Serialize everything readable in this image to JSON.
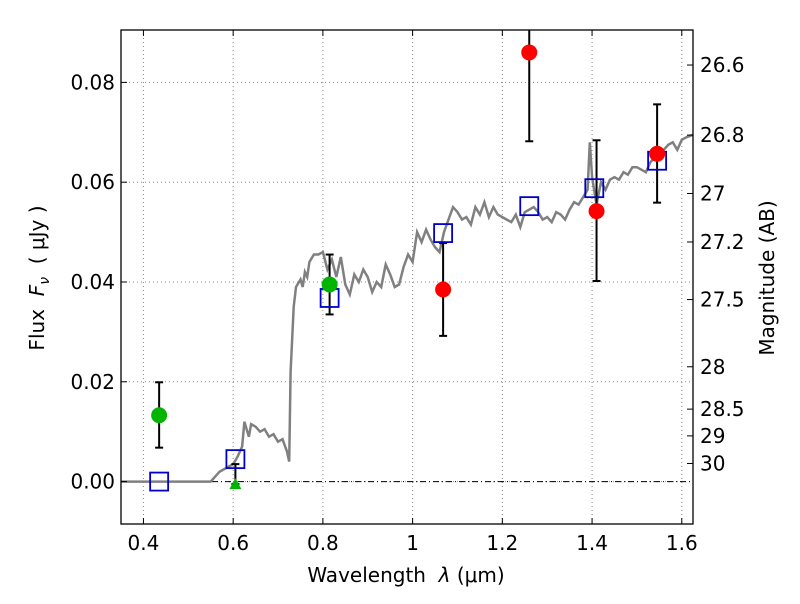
{
  "chart_data": {
    "type": "scatter",
    "title": "",
    "xlabel_prefix": "Wavelength  ",
    "xlabel_symbol": "λ",
    "xlabel_unit": " (μm)",
    "ylabel_prefix": "Flux  ",
    "ylabel_symbol": "F",
    "ylabel_subscript": "ν",
    "ylabel_unit": "  ( μJy )",
    "y2label": "Magnitude (AB)",
    "xlim": [
      0.35,
      1.625
    ],
    "ylim": [
      -0.0085,
      0.0905
    ],
    "grid": true,
    "x_ticks": [
      {
        "value": 0.4,
        "label": "0.4"
      },
      {
        "value": 0.6,
        "label": "0.6"
      },
      {
        "value": 0.8,
        "label": "0.8"
      },
      {
        "value": 1.0,
        "label": "1"
      },
      {
        "value": 1.2,
        "label": "1.2"
      },
      {
        "value": 1.4,
        "label": "1.4"
      },
      {
        "value": 1.6,
        "label": "1.6"
      }
    ],
    "y_ticks": [
      {
        "value": 0.0,
        "label": "0.00"
      },
      {
        "value": 0.02,
        "label": "0.02"
      },
      {
        "value": 0.04,
        "label": "0.04"
      },
      {
        "value": 0.06,
        "label": "0.06"
      },
      {
        "value": 0.08,
        "label": "0.08"
      }
    ],
    "magnitude_ticks": [
      {
        "label": "26.6",
        "flux": 0.08348
      },
      {
        "label": "26.8",
        "flux": 0.06944
      },
      {
        "label": "27",
        "flux": 0.05774
      },
      {
        "label": "27.2",
        "flux": 0.04802
      },
      {
        "label": "27.5",
        "flux": 0.03648
      },
      {
        "label": "28",
        "flux": 0.02301
      },
      {
        "label": "28.5",
        "flux": 0.01452
      },
      {
        "label": "29",
        "flux": 0.00916
      },
      {
        "label": "30",
        "flux": 0.00363
      }
    ],
    "colors": {
      "model": "#808080",
      "green": "#00b400",
      "red": "#ff0000",
      "square": "#0000cc",
      "error": "#000000",
      "grid": "#888888"
    },
    "model_spectrum": [
      [
        0.35,
        0.0
      ],
      [
        0.55,
        0.0
      ],
      [
        0.56,
        0.001
      ],
      [
        0.57,
        0.002
      ],
      [
        0.58,
        0.0025
      ],
      [
        0.59,
        0.003
      ],
      [
        0.6,
        0.0035
      ],
      [
        0.61,
        0.005
      ],
      [
        0.62,
        0.007
      ],
      [
        0.625,
        0.012
      ],
      [
        0.63,
        0.0105
      ],
      [
        0.635,
        0.009
      ],
      [
        0.64,
        0.0115
      ],
      [
        0.65,
        0.011
      ],
      [
        0.66,
        0.01
      ],
      [
        0.67,
        0.0105
      ],
      [
        0.68,
        0.009
      ],
      [
        0.69,
        0.0095
      ],
      [
        0.7,
        0.008
      ],
      [
        0.71,
        0.0085
      ],
      [
        0.72,
        0.006
      ],
      [
        0.725,
        0.004
      ],
      [
        0.728,
        0.022
      ],
      [
        0.735,
        0.035
      ],
      [
        0.74,
        0.039
      ],
      [
        0.75,
        0.0405
      ],
      [
        0.755,
        0.039
      ],
      [
        0.76,
        0.042
      ],
      [
        0.765,
        0.041
      ],
      [
        0.77,
        0.044
      ],
      [
        0.78,
        0.0455
      ],
      [
        0.79,
        0.0455
      ],
      [
        0.8,
        0.046
      ],
      [
        0.81,
        0.0425
      ],
      [
        0.82,
        0.0445
      ],
      [
        0.83,
        0.041
      ],
      [
        0.84,
        0.045
      ],
      [
        0.85,
        0.0395
      ],
      [
        0.86,
        0.0375
      ],
      [
        0.87,
        0.0415
      ],
      [
        0.88,
        0.04
      ],
      [
        0.89,
        0.0425
      ],
      [
        0.9,
        0.041
      ],
      [
        0.91,
        0.038
      ],
      [
        0.92,
        0.04
      ],
      [
        0.93,
        0.039
      ],
      [
        0.94,
        0.0435
      ],
      [
        0.95,
        0.0415
      ],
      [
        0.96,
        0.039
      ],
      [
        0.97,
        0.0395
      ],
      [
        0.98,
        0.043
      ],
      [
        0.99,
        0.0455
      ],
      [
        1.0,
        0.044
      ],
      [
        1.01,
        0.05
      ],
      [
        1.02,
        0.048
      ],
      [
        1.03,
        0.0505
      ],
      [
        1.04,
        0.0485
      ],
      [
        1.05,
        0.047
      ],
      [
        1.06,
        0.046
      ],
      [
        1.07,
        0.05
      ],
      [
        1.08,
        0.0525
      ],
      [
        1.09,
        0.055
      ],
      [
        1.1,
        0.054
      ],
      [
        1.11,
        0.0525
      ],
      [
        1.12,
        0.053
      ],
      [
        1.13,
        0.0515
      ],
      [
        1.14,
        0.055
      ],
      [
        1.15,
        0.0535
      ],
      [
        1.16,
        0.056
      ],
      [
        1.17,
        0.053
      ],
      [
        1.18,
        0.055
      ],
      [
        1.19,
        0.0535
      ],
      [
        1.2,
        0.053
      ],
      [
        1.21,
        0.0525
      ],
      [
        1.22,
        0.052
      ],
      [
        1.23,
        0.0535
      ],
      [
        1.24,
        0.051
      ],
      [
        1.25,
        0.054
      ],
      [
        1.26,
        0.0545
      ],
      [
        1.27,
        0.055
      ],
      [
        1.28,
        0.054
      ],
      [
        1.29,
        0.0525
      ],
      [
        1.3,
        0.053
      ],
      [
        1.31,
        0.052
      ],
      [
        1.32,
        0.054
      ],
      [
        1.33,
        0.0535
      ],
      [
        1.34,
        0.0525
      ],
      [
        1.35,
        0.0545
      ],
      [
        1.36,
        0.056
      ],
      [
        1.37,
        0.0555
      ],
      [
        1.38,
        0.057
      ],
      [
        1.39,
        0.0585
      ],
      [
        1.395,
        0.068
      ],
      [
        1.4,
        0.061
      ],
      [
        1.41,
        0.0555
      ],
      [
        1.42,
        0.06
      ],
      [
        1.43,
        0.0585
      ],
      [
        1.44,
        0.0605
      ],
      [
        1.45,
        0.061
      ],
      [
        1.46,
        0.0605
      ],
      [
        1.47,
        0.062
      ],
      [
        1.48,
        0.0615
      ],
      [
        1.49,
        0.063
      ],
      [
        1.5,
        0.063
      ],
      [
        1.51,
        0.0625
      ],
      [
        1.52,
        0.062
      ],
      [
        1.53,
        0.064
      ],
      [
        1.54,
        0.065
      ],
      [
        1.55,
        0.0645
      ],
      [
        1.56,
        0.0665
      ],
      [
        1.57,
        0.0675
      ],
      [
        1.58,
        0.068
      ],
      [
        1.59,
        0.0665
      ],
      [
        1.6,
        0.0685
      ],
      [
        1.61,
        0.069
      ],
      [
        1.625,
        0.0695
      ]
    ],
    "squares": [
      {
        "x": 0.435,
        "y": 0.0
      },
      {
        "x": 0.605,
        "y": 0.0045
      },
      {
        "x": 0.815,
        "y": 0.0368
      },
      {
        "x": 1.068,
        "y": 0.0498
      },
      {
        "x": 1.26,
        "y": 0.0552
      },
      {
        "x": 1.405,
        "y": 0.0588
      },
      {
        "x": 1.545,
        "y": 0.0643
      }
    ],
    "green_points": [
      {
        "x": 0.435,
        "y": 0.0133,
        "ylow": 0.0068,
        "yhigh": 0.0199
      },
      {
        "x": 0.815,
        "y": 0.0395,
        "ylow": 0.0335,
        "yhigh": 0.0455
      }
    ],
    "green_upper_limit": {
      "x": 0.605,
      "y": -0.0005,
      "yhigh": 0.0035
    },
    "red_points": [
      {
        "x": 1.068,
        "y": 0.0385,
        "ylow": 0.0292,
        "yhigh": 0.0478
      },
      {
        "x": 1.26,
        "y": 0.086,
        "ylow": 0.0682,
        "yhigh": 0.0905
      },
      {
        "x": 1.41,
        "y": 0.0542,
        "ylow": 0.0402,
        "yhigh": 0.0684
      },
      {
        "x": 1.545,
        "y": 0.0657,
        "ylow": 0.0559,
        "yhigh": 0.0756
      }
    ]
  }
}
